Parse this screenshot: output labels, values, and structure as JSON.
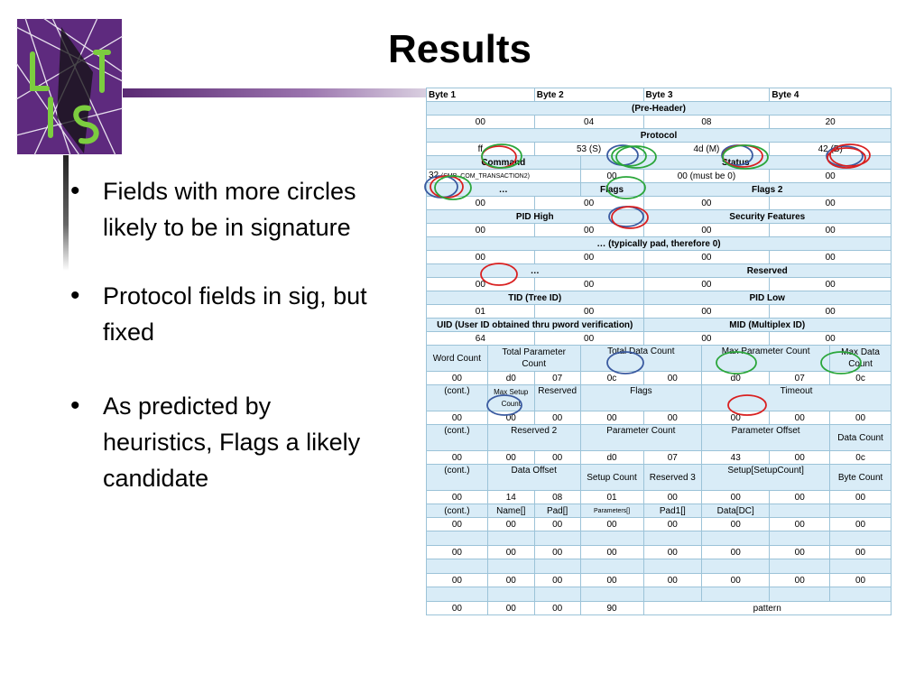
{
  "slide": {
    "title": "Results",
    "bullets": [
      "Fields with more circles likely to be in signature",
      "Protocol fields in sig, but fixed",
      "As predicted by heuristics, Flags a likely candidate"
    ]
  },
  "logo": {
    "text": "LIST",
    "colors": {
      "bg": "#5e2a7e",
      "letters": "#7ccd3f"
    }
  },
  "colors": {
    "header_bg": "#d9ecf7",
    "border": "#9cc3d8",
    "circle_red": "#d92020",
    "circle_green": "#2aa63a",
    "circle_blue": "#3a5aa0"
  },
  "table": {
    "byte1": "Byte 1",
    "byte2": "Byte 2",
    "byte3": "Byte 3",
    "byte4": "Byte 4",
    "preheader": "(Pre-Header)",
    "ph_vals": [
      "00",
      "04",
      "08",
      "20"
    ],
    "protocol": "Protocol",
    "proto_vals": [
      "ff",
      "53 (S)",
      "4d (M)",
      "42 (B)"
    ],
    "command": "Command",
    "status": "Status",
    "cmd_val": "32",
    "cmd_note": "(SMB_COM_TRANSACTION2)",
    "status_vals": [
      "00",
      "00 (must be 0)",
      "00"
    ],
    "ellipsis": "…",
    "flags": "Flags",
    "flags2": "Flags 2",
    "r6_vals": [
      "00",
      "00",
      "00",
      "00"
    ],
    "pid_high": "PID High",
    "security": "Security Features",
    "r8_vals": [
      "00",
      "00",
      "00",
      "00"
    ],
    "pad_note": "… (typically pad, therefore 0)",
    "r10_vals": [
      "00",
      "00",
      "00",
      "00"
    ],
    "ellipsis2": "…",
    "reserved": "Reserved",
    "r12_vals": [
      "00",
      "00",
      "00",
      "00"
    ],
    "tid": "TID (Tree ID)",
    "pid_low": "PID Low",
    "r14_vals": [
      "01",
      "00",
      "00",
      "00"
    ],
    "uid": "UID (User ID obtained thru pword verification)",
    "mid": "MID (Multiplex ID)",
    "r16_vals": [
      "64",
      "00",
      "00",
      "00"
    ],
    "h17": [
      "Word Count",
      "Total Parameter Count",
      "Total Data Count",
      "Max Parameter Count",
      "Max Data Count"
    ],
    "r18_vals": [
      "00",
      "d0",
      "07",
      "0c",
      "00",
      "d0",
      "07",
      "0c"
    ],
    "h19": [
      "(cont.)",
      "Max Setup Count",
      "Reserved",
      "Flags",
      "Timeout"
    ],
    "r20_vals": [
      "00",
      "00",
      "00",
      "00",
      "00",
      "00",
      "00",
      "00"
    ],
    "h21": [
      "(cont.)",
      "Reserved 2",
      "Parameter Count",
      "Parameter Offset",
      "Data Count"
    ],
    "r22_vals": [
      "00",
      "00",
      "00",
      "d0",
      "07",
      "43",
      "00",
      "0c"
    ],
    "h23": [
      "(cont.)",
      "Data Offset",
      "Setup Count",
      "Reserved 3",
      "Setup[SetupCount]",
      "Byte Count"
    ],
    "r24_vals": [
      "00",
      "14",
      "08",
      "01",
      "00",
      "00",
      "00",
      "00"
    ],
    "h25": [
      "(cont.)",
      "Name[]",
      "Pad[]",
      "Parameters[]",
      "Pad1[]",
      "Data[DC]"
    ],
    "r26_vals": [
      "00",
      "00",
      "00",
      "00",
      "00",
      "00",
      "00",
      "00"
    ],
    "r28_vals": [
      "00",
      "00",
      "00",
      "00",
      "00",
      "00",
      "00",
      "00"
    ],
    "r30_vals": [
      "00",
      "00",
      "00",
      "00",
      "00",
      "00",
      "00",
      "00"
    ],
    "r32_vals": [
      "00",
      "00",
      "00",
      "90"
    ],
    "pattern": "pattern"
  }
}
